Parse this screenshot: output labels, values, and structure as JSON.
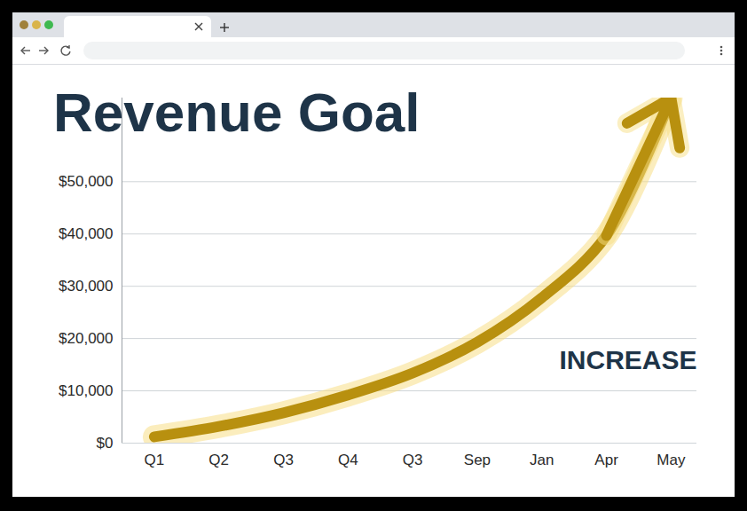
{
  "chart_data": {
    "type": "line",
    "title": "Revenue Goal",
    "annotations": [
      "INCREASE"
    ],
    "categories": [
      "Q1",
      "Q2",
      "Q3",
      "Q4",
      "Q3",
      "Sep",
      "Jan",
      "Apr",
      "May"
    ],
    "values": [
      1200,
      3200,
      5800,
      9200,
      13400,
      19300,
      27800,
      39700,
      66000
    ],
    "color": "#b8900f",
    "marker": "arrow",
    "ylim": [
      0,
      66000
    ],
    "yticks": [
      {
        "value": 0,
        "label": "$0"
      },
      {
        "value": 10000,
        "label": "$10,000"
      },
      {
        "value": 20000,
        "label": "$20,000"
      },
      {
        "value": 30000,
        "label": "$30,000"
      },
      {
        "value": 40000,
        "label": "$40,000"
      },
      {
        "value": 50000,
        "label": "$50,000"
      }
    ],
    "grid": true
  }
}
